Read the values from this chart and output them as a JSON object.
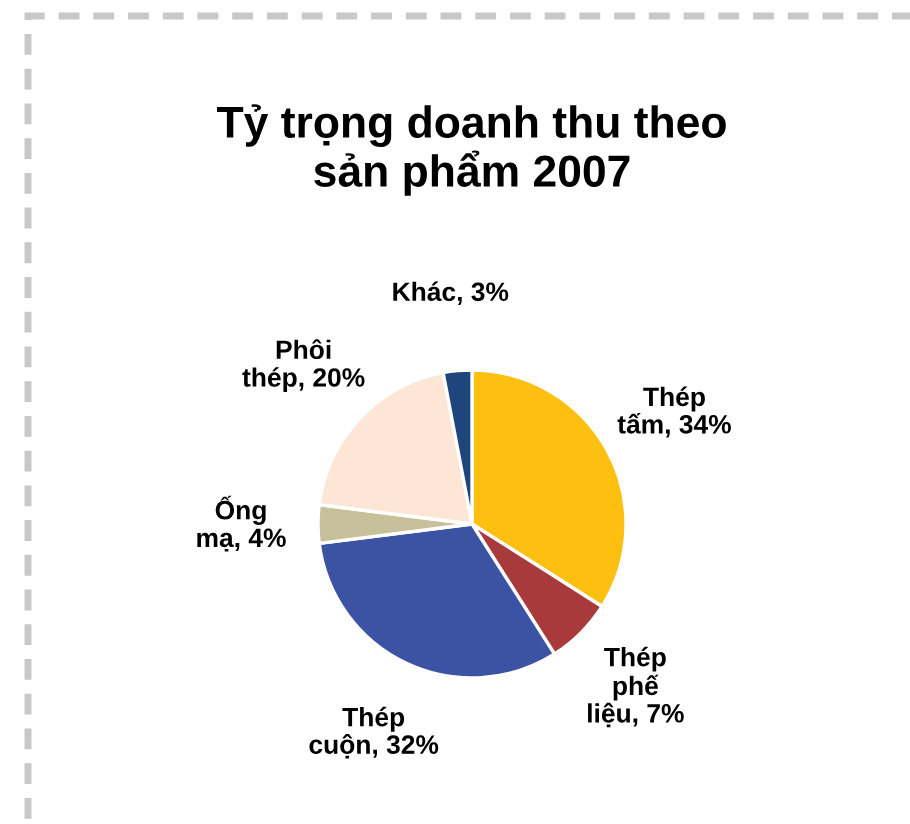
{
  "chart_data": {
    "type": "pie",
    "title": "Tỷ trọng doanh thu theo\nsản phẩm 2007",
    "categories": [
      "Thép tấm",
      "Thép phế liệu",
      "Thép cuộn",
      "Ống mạ",
      "Phôi thép",
      "Khác"
    ],
    "values": [
      34,
      7,
      32,
      4,
      20,
      3
    ],
    "value_labels": [
      "34%",
      "7%",
      "32%",
      "4%",
      "20%",
      "3%"
    ],
    "colors": [
      "#fdc010",
      "#a83a3c",
      "#3c53a4",
      "#c6c19b",
      "#fde6d6",
      "#1f467c"
    ]
  }
}
